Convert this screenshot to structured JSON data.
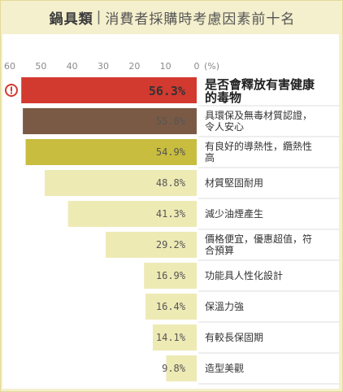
{
  "header": {
    "title_main": "鍋具類",
    "title_sep": "|",
    "title_sub": "消費者採購時考慮因素前十名"
  },
  "colors": {
    "background": "#f4efcc",
    "bar_default": "#eeeab4",
    "top3": [
      "#d23a30",
      "#7b5a45",
      "#c8bd3e"
    ],
    "warning_icon": "#d23a30",
    "gridline": "#dedede"
  },
  "warning_icon": "exclamation-circle-icon",
  "chart_data": {
    "type": "bar",
    "orientation": "horizontal",
    "x_direction": "reversed",
    "xlim": [
      0,
      60
    ],
    "xticks": [
      "60",
      "50",
      "40",
      "30",
      "20",
      "10",
      "0"
    ],
    "unit_label": "(%)",
    "categories": [
      "是否會釋放有害健康的毒物",
      "具環保及無毒材質認證，令人安心",
      "有良好的導熱性，纜熱性高",
      "材質堅固耐用",
      "減少油煙產生",
      "價格便宜，優惠超值，符合預算",
      "功能具人性化設計",
      "保溫力強",
      "有較長保固期",
      "造型美觀"
    ],
    "values": [
      56.3,
      55.8,
      54.9,
      48.8,
      41.3,
      29.2,
      16.9,
      16.4,
      14.1,
      9.8
    ],
    "value_labels": [
      "56.3%",
      "55.8%",
      "54.9%",
      "48.8%",
      "41.3%",
      "29.2%",
      "16.9%",
      "16.4%",
      "14.1%",
      "9.8%"
    ],
    "label_lines": [
      [
        "是否會釋放有害健康",
        "的毒物"
      ],
      [
        "具環保及無毒材質認證，",
        "令人安心"
      ],
      [
        "有良好的導熱性，纜熱性",
        "高"
      ],
      [
        "材質堅固耐用"
      ],
      [
        "減少油煙產生"
      ],
      [
        "價格便宜，優惠超值，符",
        "合預算"
      ],
      [
        "功能具人性化設計"
      ],
      [
        "保溫力強"
      ],
      [
        "有較長保固期"
      ],
      [
        "造型美觀"
      ]
    ]
  }
}
